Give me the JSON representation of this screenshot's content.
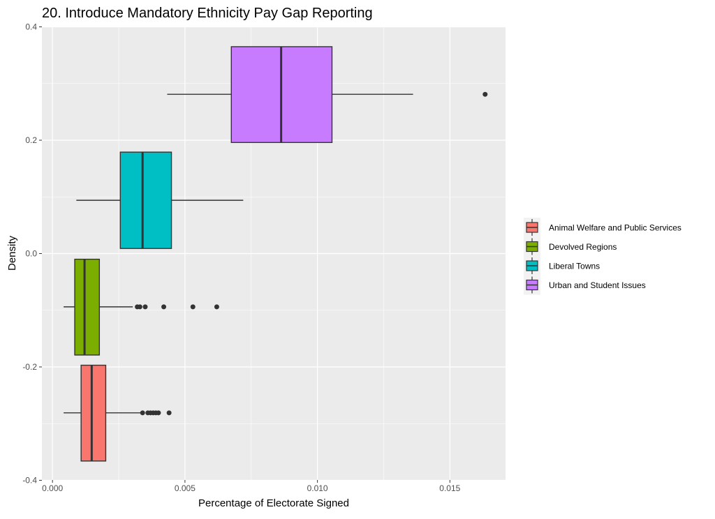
{
  "chart_data": {
    "type": "boxplot",
    "title": "20. Introduce Mandatory Ethnicity Pay Gap Reporting",
    "xlabel": "Percentage of Electorate Signed",
    "ylabel": "Density",
    "xlim": [
      -0.0004,
      0.0171
    ],
    "ylim": [
      -0.4,
      0.4
    ],
    "x_ticks": [
      0,
      0.005,
      0.01,
      0.015
    ],
    "x_tick_labels": [
      "0.000",
      "0.005",
      "0.010",
      "0.015"
    ],
    "y_ticks": [
      0.4,
      0.2,
      0.0,
      -0.2,
      -0.4
    ],
    "y_tick_labels": [
      "0.4",
      "0.2",
      "0.0",
      "-0.2",
      "-0.4"
    ],
    "grid": true,
    "legend_position": "right",
    "series": [
      {
        "name": "Animal Welfare and Public Services",
        "color": "#F8766D",
        "y_center": -0.281,
        "y_top": -0.197,
        "y_bottom": -0.366,
        "whisker_low": 0.00042,
        "q1": 0.00108,
        "median": 0.00148,
        "q3": 0.00201,
        "whisker_high": 0.00338,
        "outliers": [
          0.0034,
          0.0036,
          0.0037,
          0.0038,
          0.0039,
          0.004,
          0.0044
        ]
      },
      {
        "name": "Devolved Regions",
        "color": "#7CAE00",
        "y_center": -0.094,
        "y_top": -0.01,
        "y_bottom": -0.179,
        "whisker_low": 0.00042,
        "q1": 0.00084,
        "median": 0.00121,
        "q3": 0.00177,
        "whisker_high": 0.00303,
        "outliers": [
          0.0032,
          0.0033,
          0.0035,
          0.0042,
          0.0053,
          0.0062
        ]
      },
      {
        "name": "Liberal Towns",
        "color": "#00BFC4",
        "y_center": 0.094,
        "y_top": 0.179,
        "y_bottom": 0.009,
        "whisker_low": 0.0009,
        "q1": 0.00256,
        "median": 0.0034,
        "q3": 0.00449,
        "whisker_high": 0.0072,
        "outliers": []
      },
      {
        "name": "Urban and Student Issues",
        "color": "#C77CFF",
        "y_center": 0.281,
        "y_top": 0.365,
        "y_bottom": 0.196,
        "whisker_low": 0.00433,
        "q1": 0.00675,
        "median": 0.00863,
        "q3": 0.01055,
        "whisker_high": 0.01361,
        "outliers": [
          0.01633
        ]
      }
    ]
  }
}
